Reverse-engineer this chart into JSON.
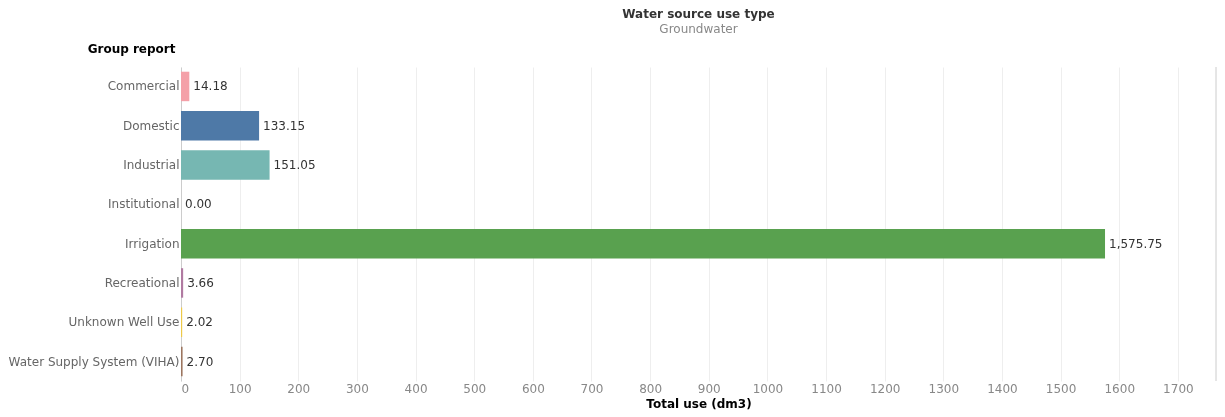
{
  "chart_data": {
    "type": "bar",
    "orientation": "horizontal",
    "title": "Water source use type",
    "subtitle": "Groundwater",
    "xlabel": "Total use (dm3)",
    "ylabel": "Group report",
    "categories": [
      "Commercial",
      "Domestic",
      "Industrial",
      "Institutional",
      "Irrigation",
      "Recreational",
      "Unknown Well Use",
      "Water Supply System (VIHA)"
    ],
    "values": [
      14.18,
      133.15,
      151.05,
      0.0,
      1575.75,
      3.66,
      2.02,
      2.7
    ],
    "colors": [
      "#f4a0a8",
      "#4e79a7",
      "#76b7b2",
      "#e15759",
      "#59a14f",
      "#b07aa1",
      "#edc948",
      "#9c755f"
    ],
    "xlim": [
      0,
      1765
    ],
    "xticks": [
      0,
      100,
      200,
      300,
      400,
      500,
      600,
      700,
      800,
      900,
      1000,
      1100,
      1200,
      1300,
      1400,
      1500,
      1600,
      1700
    ],
    "value_labels": [
      "14.18",
      "133.15",
      "151.05",
      "0.00",
      "1,575.75",
      "3.66",
      "2.02",
      "2.70"
    ],
    "grid": "x"
  }
}
